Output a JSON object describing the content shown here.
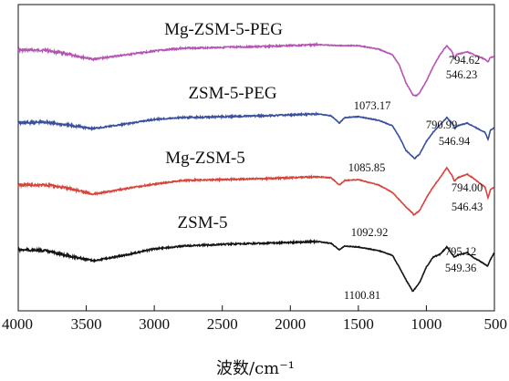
{
  "chart_data": {
    "type": "line",
    "xlabel": "波数/cm⁻¹",
    "ylabel": "",
    "xlim": [
      4000,
      500
    ],
    "x_reversed": true,
    "x_ticks": [
      "4000",
      "3500",
      "3000",
      "2500",
      "2000",
      "1500",
      "1000",
      "500"
    ],
    "y_ticks": [],
    "grid": false,
    "series": [
      {
        "name": "Mg-ZSM-5-PEG",
        "color": "#b455b4",
        "points": [
          [
            4000,
            50
          ],
          [
            3800,
            50
          ],
          [
            3650,
            54
          ],
          [
            3450,
            60
          ],
          [
            3250,
            56
          ],
          [
            3000,
            51
          ],
          [
            2800,
            48
          ],
          [
            2500,
            47
          ],
          [
            2200,
            46
          ],
          [
            2000,
            45
          ],
          [
            1800,
            44
          ],
          [
            1650,
            45
          ],
          [
            1500,
            45
          ],
          [
            1350,
            49
          ],
          [
            1250,
            55
          ],
          [
            1200,
            66
          ],
          [
            1150,
            86
          ],
          [
            1100,
            99
          ],
          [
            1075,
            100
          ],
          [
            1050,
            97
          ],
          [
            1000,
            84
          ],
          [
            950,
            68
          ],
          [
            900,
            55
          ],
          [
            850,
            45
          ],
          [
            810,
            52
          ],
          [
            794.62,
            60
          ],
          [
            780,
            55
          ],
          [
            760,
            54
          ],
          [
            700,
            52
          ],
          [
            650,
            55
          ],
          [
            600,
            58
          ],
          [
            570,
            60
          ],
          [
            546.23,
            63
          ],
          [
            530,
            58
          ],
          [
            500,
            57
          ]
        ],
        "annotations": [
          "794.62",
          "546.23",
          "1073.17"
        ]
      },
      {
        "name": "ZSM-5-PEG",
        "color": "#3a4f9e",
        "points": [
          [
            4000,
            130
          ],
          [
            3800,
            129
          ],
          [
            3650,
            132
          ],
          [
            3450,
            136
          ],
          [
            3250,
            132
          ],
          [
            3000,
            126
          ],
          [
            2800,
            124
          ],
          [
            2500,
            123
          ],
          [
            2200,
            122
          ],
          [
            2000,
            121
          ],
          [
            1800,
            120
          ],
          [
            1700,
            122
          ],
          [
            1640,
            130
          ],
          [
            1600,
            124
          ],
          [
            1500,
            123
          ],
          [
            1350,
            127
          ],
          [
            1250,
            133
          ],
          [
            1200,
            145
          ],
          [
            1150,
            160
          ],
          [
            1100,
            167
          ],
          [
            1085.85,
            169
          ],
          [
            1050,
            164
          ],
          [
            1000,
            150
          ],
          [
            950,
            140
          ],
          [
            900,
            132
          ],
          [
            850,
            124
          ],
          [
            810,
            130
          ],
          [
            790.99,
            136
          ],
          [
            770,
            133
          ],
          [
            700,
            130
          ],
          [
            650,
            134
          ],
          [
            600,
            138
          ],
          [
            570,
            140
          ],
          [
            546.94,
            148
          ],
          [
            530,
            138
          ],
          [
            500,
            135
          ]
        ],
        "annotations": [
          "790.99",
          "546.94",
          "1085.85"
        ]
      },
      {
        "name": "Mg-ZSM-5",
        "color": "#d8433a",
        "points": [
          [
            4000,
            198
          ],
          [
            3800,
            198
          ],
          [
            3650,
            201
          ],
          [
            3450,
            208
          ],
          [
            3250,
            203
          ],
          [
            3000,
            197
          ],
          [
            2800,
            193
          ],
          [
            2500,
            192
          ],
          [
            2200,
            191
          ],
          [
            2000,
            190
          ],
          [
            1800,
            189
          ],
          [
            1700,
            190
          ],
          [
            1640,
            198
          ],
          [
            1600,
            193
          ],
          [
            1500,
            192
          ],
          [
            1350,
            198
          ],
          [
            1250,
            206
          ],
          [
            1200,
            214
          ],
          [
            1150,
            222
          ],
          [
            1100,
            229
          ],
          [
            1092.92,
            231
          ],
          [
            1050,
            226
          ],
          [
            1000,
            212
          ],
          [
            950,
            200
          ],
          [
            900,
            190
          ],
          [
            850,
            179
          ],
          [
            810,
            188
          ],
          [
            794.0,
            194
          ],
          [
            770,
            190
          ],
          [
            700,
            186
          ],
          [
            650,
            191
          ],
          [
            600,
            197
          ],
          [
            570,
            200
          ],
          [
            546.43,
            212
          ],
          [
            530,
            203
          ],
          [
            500,
            200
          ]
        ],
        "annotations": [
          "794.00",
          "546.43",
          "1092.92"
        ]
      },
      {
        "name": "ZSM-5",
        "color": "#141414",
        "points": [
          [
            4000,
            269
          ],
          [
            3800,
            270
          ],
          [
            3650,
            275
          ],
          [
            3450,
            281
          ],
          [
            3250,
            276
          ],
          [
            3000,
            268
          ],
          [
            2800,
            265
          ],
          [
            2500,
            263
          ],
          [
            2200,
            262
          ],
          [
            2000,
            261
          ],
          [
            1800,
            260
          ],
          [
            1700,
            262
          ],
          [
            1640,
            269
          ],
          [
            1600,
            265
          ],
          [
            1500,
            266
          ],
          [
            1350,
            270
          ],
          [
            1250,
            275
          ],
          [
            1200,
            288
          ],
          [
            1150,
            302
          ],
          [
            1110,
            312
          ],
          [
            1100.81,
            315
          ],
          [
            1050,
            305
          ],
          [
            1000,
            288
          ],
          [
            950,
            277
          ],
          [
            900,
            274
          ],
          [
            850,
            266
          ],
          [
            810,
            274
          ],
          [
            795.12,
            277
          ],
          [
            770,
            275
          ],
          [
            700,
            272
          ],
          [
            650,
            278
          ],
          [
            600,
            282
          ],
          [
            570,
            285
          ],
          [
            549.36,
            287
          ],
          [
            530,
            280
          ],
          [
            500,
            272
          ]
        ],
        "annotations": [
          "795.12",
          "549.36",
          "1100.81"
        ]
      }
    ]
  }
}
